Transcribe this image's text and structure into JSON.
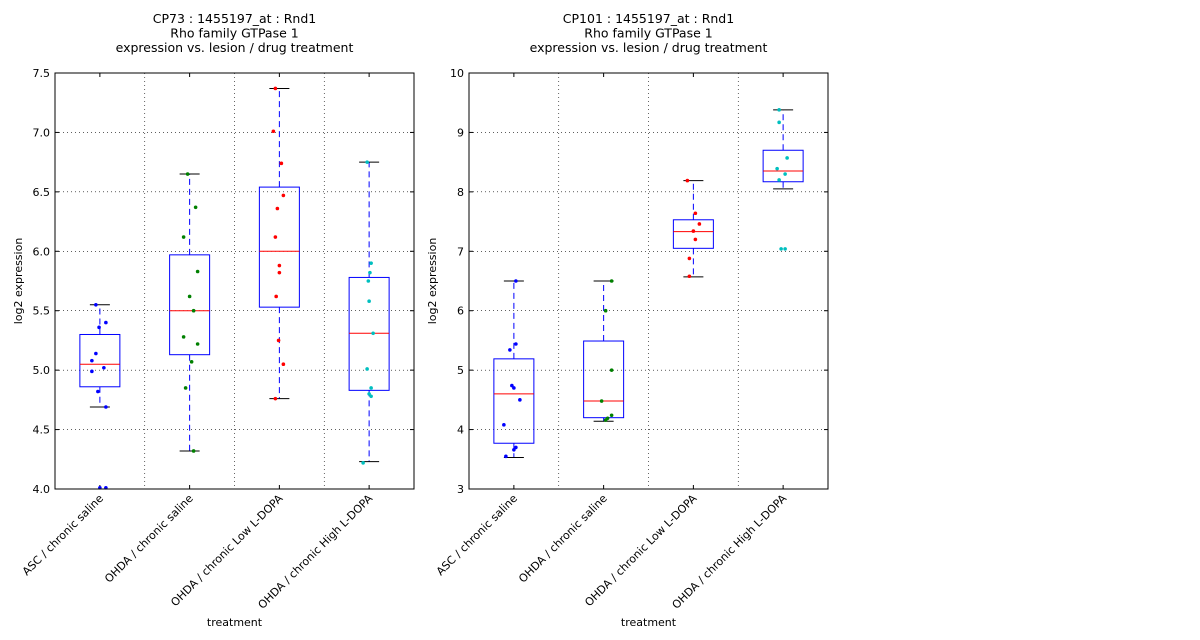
{
  "chart_data": [
    {
      "type": "box",
      "title": [
        "CP73 : 1455197_at : Rnd1",
        "Rho family GTPase 1",
        "expression vs. lesion / drug treatment"
      ],
      "xlabel": "treatment",
      "ylabel": "log2 expression",
      "ylim": [
        4.0,
        7.5
      ],
      "yticks": [
        "4.0",
        "4.5",
        "5.0",
        "5.5",
        "6.0",
        "6.5",
        "7.0",
        "7.5"
      ],
      "grid": true,
      "categories": [
        "ASC / chronic saline",
        "OHDA / chronic saline",
        "OHDA / chronic Low L-DOPA",
        "OHDA / chronic High L-DOPA"
      ],
      "boxes": [
        {
          "whisker_low": 4.69,
          "q1": 4.86,
          "median": 5.05,
          "q3": 5.3,
          "whisker_high": 5.55,
          "color": "#0000ff",
          "points": [
            [
              -0.1,
              5.55
            ],
            [
              0.15,
              5.4
            ],
            [
              -0.02,
              5.36
            ],
            [
              -0.1,
              5.14
            ],
            [
              -0.2,
              5.08
            ],
            [
              0.1,
              5.02
            ],
            [
              -0.2,
              4.99
            ],
            [
              -0.05,
              4.82
            ],
            [
              0.15,
              4.69
            ],
            [
              0.0,
              4.01
            ],
            [
              0.15,
              4.01
            ]
          ]
        },
        {
          "whisker_low": 4.32,
          "q1": 5.13,
          "median": 5.5,
          "q3": 5.97,
          "whisker_high": 6.65,
          "color": "#008000",
          "points": [
            [
              -0.05,
              6.65
            ],
            [
              0.15,
              6.37
            ],
            [
              -0.15,
              6.12
            ],
            [
              0.2,
              5.83
            ],
            [
              0.0,
              5.62
            ],
            [
              0.1,
              5.5
            ],
            [
              -0.15,
              5.28
            ],
            [
              0.2,
              5.22
            ],
            [
              0.05,
              5.07
            ],
            [
              -0.1,
              4.85
            ],
            [
              0.1,
              4.32
            ]
          ]
        },
        {
          "whisker_low": 4.76,
          "q1": 5.53,
          "median": 6.0,
          "q3": 6.54,
          "whisker_high": 7.37,
          "color": "#ff0000",
          "points": [
            [
              -0.1,
              7.37
            ],
            [
              -0.15,
              7.01
            ],
            [
              0.05,
              6.74
            ],
            [
              0.1,
              6.47
            ],
            [
              -0.05,
              6.36
            ],
            [
              -0.1,
              6.12
            ],
            [
              0.0,
              5.88
            ],
            [
              0.0,
              5.82
            ],
            [
              -0.08,
              5.62
            ],
            [
              -0.02,
              5.25
            ],
            [
              0.1,
              5.05
            ],
            [
              -0.1,
              4.76
            ]
          ]
        },
        {
          "whisker_low": 4.23,
          "q1": 4.83,
          "median": 5.31,
          "q3": 5.78,
          "whisker_high": 6.75,
          "color": "#00bfbf",
          "points": [
            [
              -0.05,
              6.75
            ],
            [
              0.05,
              5.9
            ],
            [
              0.02,
              5.82
            ],
            [
              -0.02,
              5.75
            ],
            [
              0.0,
              5.58
            ],
            [
              0.1,
              5.31
            ],
            [
              -0.05,
              5.01
            ],
            [
              0.05,
              4.85
            ],
            [
              0.0,
              4.8
            ],
            [
              0.05,
              4.78
            ],
            [
              -0.15,
              4.22
            ]
          ]
        }
      ]
    },
    {
      "type": "box",
      "title": [
        "CP101 : 1455197_at : Rnd1",
        "Rho family GTPase 1",
        "expression vs. lesion / drug treatment"
      ],
      "xlabel": "treatment",
      "ylabel": "log2 expression",
      "ylim": [
        3,
        10
      ],
      "yticks": [
        "3",
        "4",
        "5",
        "6",
        "7",
        "8",
        "9",
        "10"
      ],
      "grid": true,
      "categories": [
        "ASC / chronic saline",
        "OHDA / chronic saline",
        "OHDA / chronic Low L-DOPA",
        "OHDA / chronic High L-DOPA"
      ],
      "boxes": [
        {
          "whisker_low": 3.53,
          "q1": 3.77,
          "median": 4.6,
          "q3": 5.19,
          "whisker_high": 6.5,
          "color": "#0000ff",
          "points": [
            [
              0.05,
              6.5
            ],
            [
              0.05,
              5.44
            ],
            [
              -0.1,
              5.34
            ],
            [
              -0.05,
              4.74
            ],
            [
              0.0,
              4.7
            ],
            [
              0.15,
              4.5
            ],
            [
              -0.25,
              4.08
            ],
            [
              0.05,
              3.7
            ],
            [
              0.0,
              3.66
            ],
            [
              -0.2,
              3.55
            ]
          ]
        },
        {
          "whisker_low": 4.14,
          "q1": 4.2,
          "median": 4.48,
          "q3": 5.49,
          "whisker_high": 6.5,
          "color": "#008000",
          "points": [
            [
              0.2,
              6.5
            ],
            [
              0.05,
              6.0
            ],
            [
              0.2,
              5.0
            ],
            [
              -0.05,
              4.48
            ],
            [
              0.2,
              4.24
            ],
            [
              0.1,
              4.19
            ],
            [
              0.05,
              4.16
            ]
          ]
        },
        {
          "whisker_low": 6.57,
          "q1": 7.05,
          "median": 7.33,
          "q3": 7.53,
          "whisker_high": 8.19,
          "color": "#ff0000",
          "points": [
            [
              -0.15,
              8.19
            ],
            [
              0.05,
              7.64
            ],
            [
              0.15,
              7.46
            ],
            [
              0.0,
              7.34
            ],
            [
              0.05,
              7.2
            ],
            [
              -0.1,
              6.88
            ],
            [
              -0.1,
              6.58
            ]
          ]
        },
        {
          "whisker_low": 8.05,
          "q1": 8.17,
          "median": 8.35,
          "q3": 8.7,
          "whisker_high": 9.38,
          "color": "#00bfbf",
          "points": [
            [
              -0.1,
              9.38
            ],
            [
              -0.1,
              9.17
            ],
            [
              0.1,
              8.57
            ],
            [
              -0.15,
              8.39
            ],
            [
              0.05,
              8.3
            ],
            [
              -0.1,
              8.2
            ],
            [
              -0.05,
              7.04
            ],
            [
              0.05,
              7.04
            ]
          ]
        }
      ]
    }
  ]
}
